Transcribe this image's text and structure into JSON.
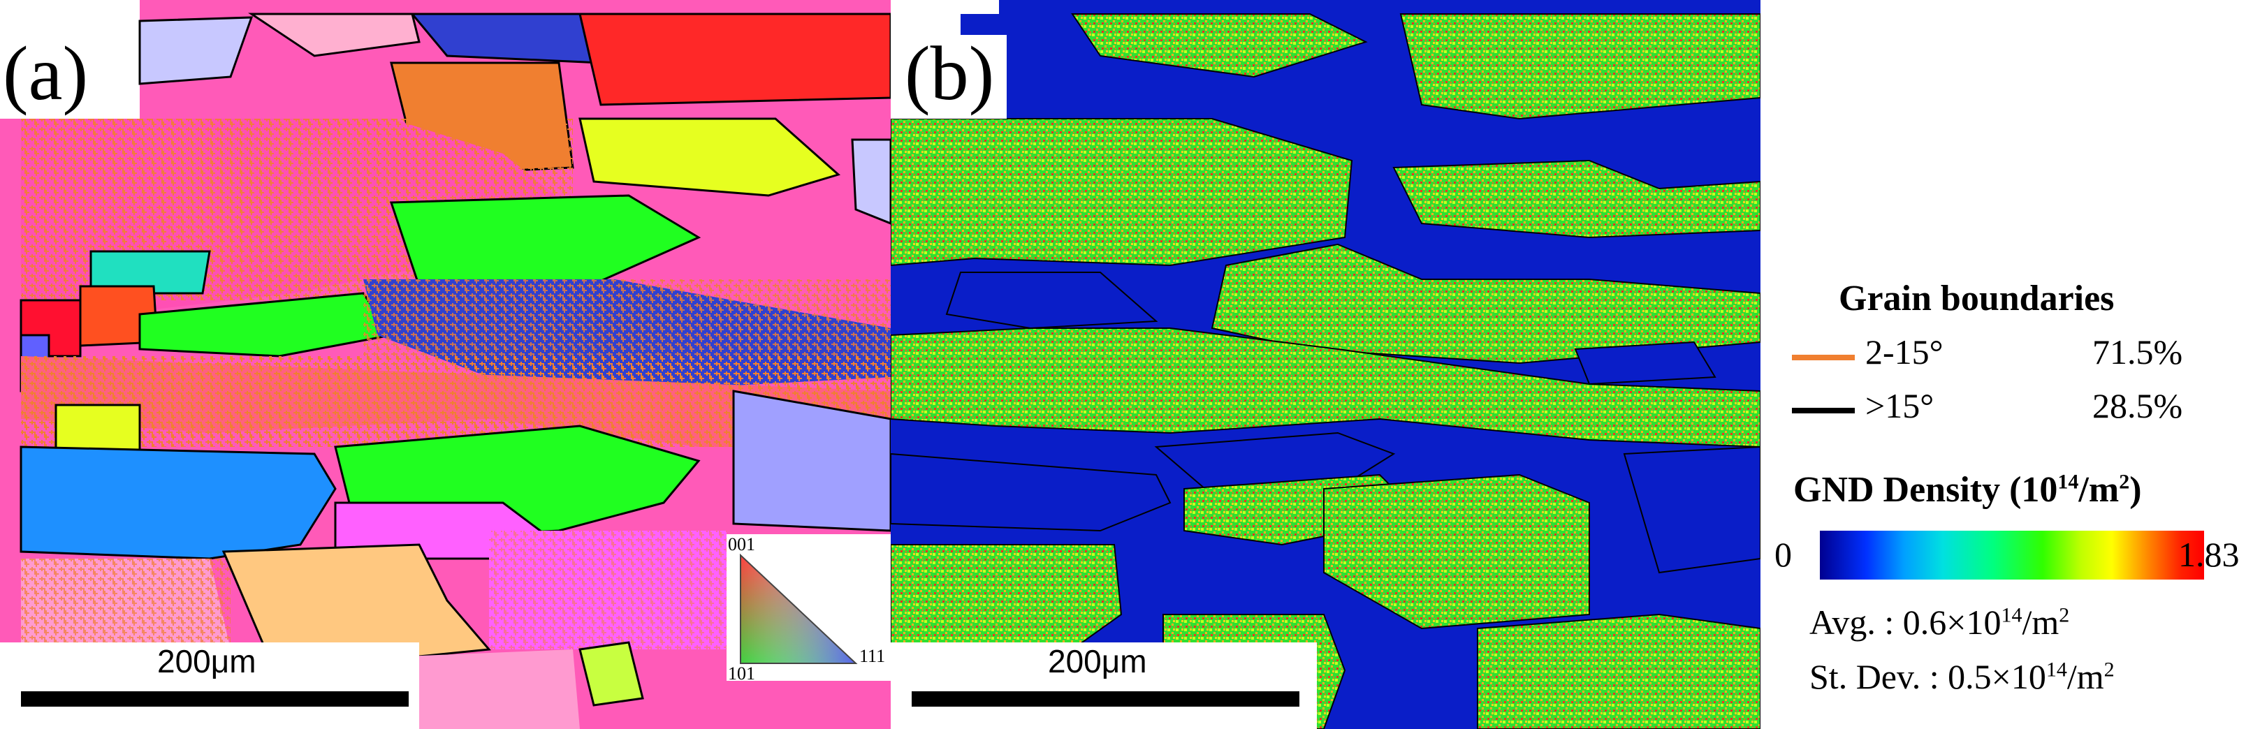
{
  "panel_a": {
    "label": "(a)",
    "scale_label": "200μm",
    "ipf_key": {
      "corner_top": "001",
      "corner_bottom_left": "101",
      "corner_right": "111"
    }
  },
  "panel_b": {
    "label": "(b)",
    "scale_label": "200μm"
  },
  "legend": {
    "grain_boundaries_title": "Grain boundaries",
    "boundaries": [
      {
        "label": "2-15°",
        "fraction": "71.5%",
        "color": "#f07f30"
      },
      {
        "label": ">15°",
        "fraction": "28.5%",
        "color": "#000000"
      }
    ],
    "gnd_title": "GND Density (10",
    "gnd_title_sup": "14",
    "gnd_title_rest": "/m",
    "gnd_title_sup2": "2",
    "gnd_title_end": ")",
    "colorbar_min": "0",
    "colorbar_max": "1.83",
    "avg_text": "Avg. : 0.6×10",
    "avg_sup": "14",
    "avg_unit": "/m",
    "avg_sup2": "2",
    "std_text": "St. Dev. : 0.5×10",
    "std_sup": "14",
    "std_unit": "/m",
    "std_sup2": "2"
  },
  "colors": {
    "ipf": [
      "#ff4fb4",
      "#ff2828",
      "#f07f30",
      "#ff9ad0",
      "#e6ff20",
      "#20ff20",
      "#00e0ff",
      "#1e90ff",
      "#3040d0",
      "#a040ff",
      "#ffc880",
      "#ffd060",
      "#ff60ff"
    ],
    "gnd": [
      "#0a1ec8",
      "#30e030",
      "#c8ff20",
      "#ffb020",
      "#ff3020",
      "#00c8ff"
    ]
  }
}
